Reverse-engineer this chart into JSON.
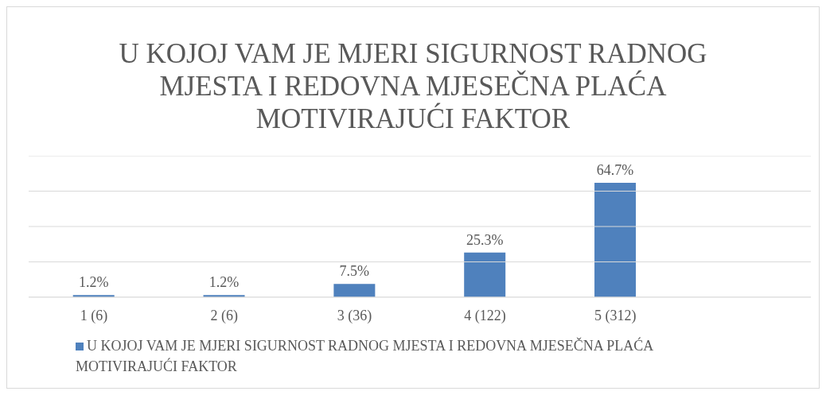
{
  "chart_data": {
    "type": "bar",
    "title": "U KOJOJ VAM JE MJERI SIGURNOST RADNOG MJESTA I REDOVNA MJESEČNA PLAĆA MOTIVIRAJUĆI FAKTOR",
    "categories": [
      "1 (6)",
      "2 (6)",
      "3 (36)",
      "4 (122)",
      "5 (312)",
      null
    ],
    "series": [
      {
        "name": "U KOJOJ VAM JE MJERI SIGURNOST RADNOG MJESTA I REDOVNA MJESEČNA PLAĆA MOTIVIRAJUĆI FAKTOR",
        "color": "#4f81bd",
        "values": [
          1.2,
          1.2,
          7.5,
          25.3,
          64.7,
          null
        ],
        "value_labels": [
          "1.2%",
          "1.2%",
          "7.5%",
          "25.3%",
          "64.7%",
          null
        ]
      }
    ],
    "ylim": [
      0,
      80
    ],
    "yticks": [
      {
        "value": 0,
        "label": null
      },
      {
        "value": 20,
        "label": null
      },
      {
        "value": 40,
        "label": null
      },
      {
        "value": 60,
        "label": null
      },
      {
        "value": 80,
        "label": null
      }
    ],
    "grid": "y",
    "legend": "bottom",
    "tick_labels": "x"
  }
}
